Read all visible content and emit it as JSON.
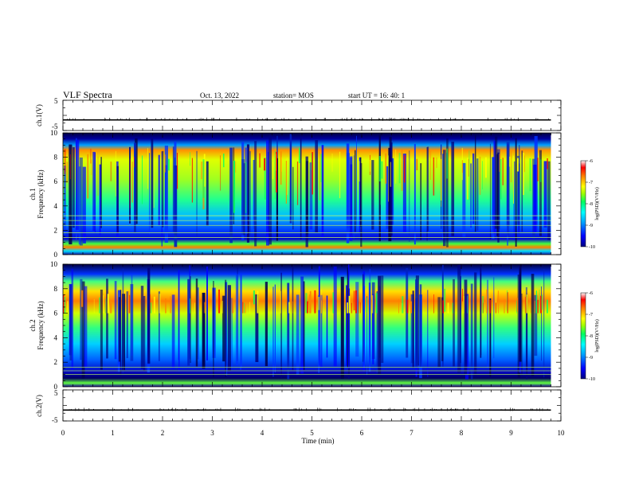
{
  "header": {
    "title": "VLF Spectra",
    "date": "Oct. 13, 2022",
    "station": "station= MOS",
    "start_ut": "start  UT =   16: 40: 1"
  },
  "chart_data": {
    "type": "heatmap",
    "xlabel": "Time  (min)",
    "xlim": [
      0,
      10
    ],
    "x_ticks": [
      "0",
      "1",
      "2",
      "3",
      "4",
      "5",
      "6",
      "7",
      "8",
      "9",
      "10"
    ],
    "panels": [
      {
        "id": "ch1-waveform",
        "type": "line",
        "ylabel": "ch.1(V)",
        "ylim": [
          -5,
          5
        ],
        "y_ticks": [
          "5",
          "-5"
        ],
        "baseline_value": -1.5,
        "data_end_min": 9.8
      },
      {
        "id": "ch1-spectrogram",
        "type": "heatmap",
        "ylabel_line1": "ch.1",
        "ylabel_line2": "Frequency  (kHz)",
        "ylim": [
          0,
          10
        ],
        "y_ticks": [
          "0",
          "2",
          "4",
          "6",
          "8",
          "10"
        ],
        "data_end_min": 9.8,
        "band_hot_khz": [
          0.5,
          8.8
        ],
        "hum_lines_khz": [
          1.4,
          1.8,
          2.4,
          2.8,
          3.2
        ],
        "colorbar": {
          "label": "log(PSD)(V²/Hz)",
          "range": [
            -10,
            -6
          ],
          "ticks": [
            "-6",
            "-7",
            "-8",
            "-9",
            "-10"
          ]
        }
      },
      {
        "id": "ch2-spectrogram",
        "type": "heatmap",
        "ylabel_line1": "ch.2",
        "ylabel_line2": "Frequency  (kHz)",
        "ylim": [
          0,
          10
        ],
        "y_ticks": [
          "0",
          "2",
          "4",
          "6",
          "8",
          "10"
        ],
        "data_end_min": 9.8,
        "band_hot_khz": [
          6.0,
          8.0
        ],
        "hum_lines_khz": [
          1.0,
          1.3,
          1.6
        ],
        "colorbar": {
          "label": "log(PSD)(V²/Hz)",
          "range": [
            -10,
            -6
          ],
          "ticks": [
            "-6",
            "-7",
            "-8",
            "-9",
            "-10"
          ]
        }
      },
      {
        "id": "ch2-waveform",
        "type": "line",
        "ylabel": "ch.2(V)",
        "ylim": [
          -5,
          5
        ],
        "y_ticks": [
          "5",
          "-5"
        ],
        "baseline_value": -1.5,
        "data_end_min": 9.8
      }
    ],
    "colormap": [
      "#000080",
      "#0000ff",
      "#00a0ff",
      "#00ffff",
      "#00ff80",
      "#80ff00",
      "#ffff00",
      "#ff8000",
      "#ff0000",
      "#ffffff"
    ],
    "grid": false
  }
}
